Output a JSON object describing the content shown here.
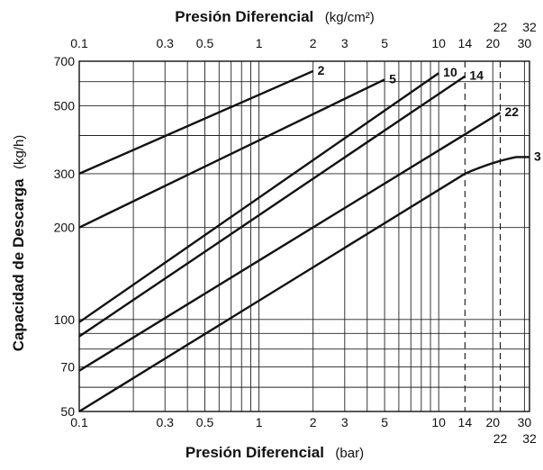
{
  "chart_data": {
    "type": "line",
    "title_top": "Presión Diferencial",
    "title_top_unit": "(kg/cm²)",
    "xlabel": "Presión Diferencial",
    "xlabel_unit": "(bar)",
    "ylabel": "Capacidad de Descarga",
    "ylabel_unit": "(kg/h)",
    "x_scale": "log",
    "y_scale": "log",
    "xlim": [
      0.1,
      32
    ],
    "ylim": [
      50,
      700
    ],
    "grid": true,
    "x_ticks_bottom": [
      "0.1",
      "0.3",
      "0.5",
      "1",
      "2",
      "3",
      "5",
      "10",
      "14",
      "20",
      "30"
    ],
    "x_ticks_bottom_extra": [
      "22",
      "32"
    ],
    "x_ticks_top": [
      "0.1",
      "0.3",
      "0.5",
      "1",
      "2",
      "3",
      "5",
      "10",
      "14",
      "20",
      "30"
    ],
    "x_ticks_top_extra": [
      "22",
      "32"
    ],
    "y_ticks": [
      "50",
      "70",
      "100",
      "200",
      "300",
      "500",
      "700"
    ],
    "reference_lines_x": [
      14,
      22
    ],
    "series": [
      {
        "name": "2",
        "x": [
          0.1,
          2
        ],
        "y": [
          300,
          650
        ]
      },
      {
        "name": "5",
        "x": [
          0.1,
          5
        ],
        "y": [
          200,
          610
        ]
      },
      {
        "name": "10",
        "x": [
          0.1,
          10
        ],
        "y": [
          98,
          640
        ]
      },
      {
        "name": "14",
        "x": [
          0.1,
          14
        ],
        "y": [
          88,
          625
        ]
      },
      {
        "name": "22",
        "x": [
          0.1,
          22
        ],
        "y": [
          68,
          475
        ]
      },
      {
        "name": "3",
        "x": [
          0.1,
          14,
          18,
          22,
          27,
          32
        ],
        "y": [
          50,
          300,
          320,
          332,
          340,
          340
        ]
      }
    ]
  }
}
